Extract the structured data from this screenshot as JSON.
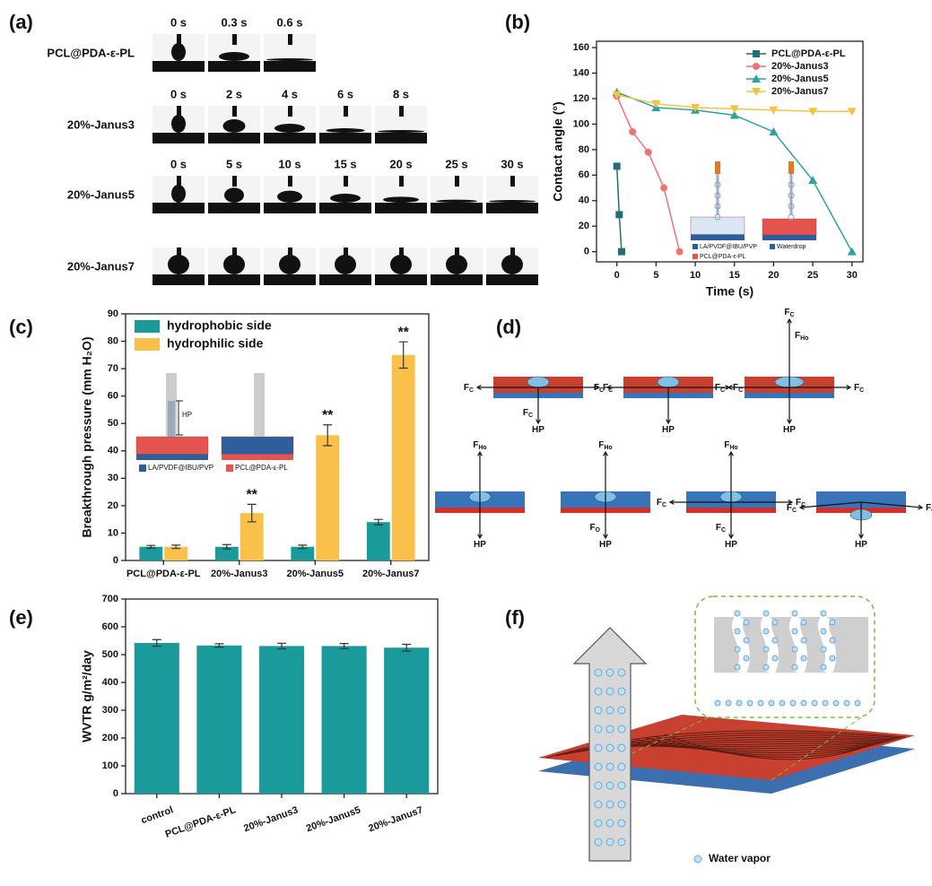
{
  "panel_labels": [
    "(a)",
    "(b)",
    "(c)",
    "(d)",
    "(e)",
    "(f)"
  ],
  "droplet_test": {
    "rows": [
      {
        "name": "PCL@PDA-ε-PL",
        "times": [
          "0 s",
          "0.3 s",
          "0.6 s"
        ]
      },
      {
        "name": "20%-Janus3",
        "times": [
          "0 s",
          "2 s",
          "4 s",
          "6 s",
          "8 s"
        ]
      },
      {
        "name": "20%-Janus5",
        "times": [
          "0 s",
          "5 s",
          "10 s",
          "15 s",
          "20 s",
          "25 s",
          "30 s"
        ]
      },
      {
        "name": "20%-Janus7",
        "times": []
      }
    ]
  },
  "inset_b": {
    "legend": [
      "LA/PVDF@IBU/PVP",
      "PCL@PDA-ε-PL",
      "Waterdrop"
    ]
  },
  "inset_c": {
    "label": "HP",
    "legend": [
      "LA/PVDF@IBU/PVP",
      "PCL@PDA-ε-PL"
    ]
  },
  "forces": {
    "diagrams": [
      [
        {
          "base": "F",
          "sub": "C"
        },
        {
          "base": "F",
          "sub": "C"
        },
        {
          "base": "F",
          "sub": "C"
        },
        {
          "base": "HP"
        }
      ],
      [
        {
          "base": "F",
          "sub": "C"
        },
        {
          "base": "F",
          "sub": "C"
        },
        {
          "base": "HP"
        }
      ],
      [
        {
          "base": "F",
          "sub": "C"
        },
        {
          "base": "F",
          "sub": "Ho"
        },
        {
          "base": "F",
          "sub": "C"
        },
        {
          "base": "F",
          "sub": "C"
        },
        {
          "base": "HP"
        }
      ],
      [
        {
          "base": "F",
          "sub": "Ho"
        },
        {
          "base": "HP"
        }
      ],
      [
        {
          "base": "F",
          "sub": "Ho"
        },
        {
          "base": "F",
          "sub": "O"
        },
        {
          "base": "HP"
        }
      ],
      [
        {
          "base": "F",
          "sub": "Ho"
        },
        {
          "base": "F",
          "sub": "C"
        },
        {
          "base": "F",
          "sub": "C"
        },
        {
          "base": "F",
          "sub": "C"
        },
        {
          "base": "HP"
        }
      ],
      [
        {
          "base": "F",
          "sub": "C"
        },
        {
          "base": "F",
          "sub": "C"
        },
        {
          "base": "HP"
        }
      ]
    ]
  },
  "vapor": {
    "legend": "Water vapor"
  },
  "chart_data": [
    {
      "type": "line",
      "xlabel": "Time (s)",
      "ylabel": "Contact angle (°)",
      "xlim": [
        -2.6,
        31.4
      ],
      "xticks": [
        0,
        5,
        10,
        15,
        20,
        25,
        30
      ],
      "ylim": [
        -8,
        165
      ],
      "yticks": [
        0,
        20,
        40,
        60,
        80,
        100,
        120,
        140,
        160
      ],
      "legend": "upper right",
      "series": [
        {
          "name": "PCL@PDA-ε-PL",
          "color": "#1f6f78",
          "marker": "square",
          "x": [
            0,
            0.3,
            0.6
          ],
          "values": [
            67,
            29,
            0
          ]
        },
        {
          "name": "20%-Janus3",
          "color": "#f07272",
          "marker": "circle",
          "x": [
            0,
            2,
            4,
            6,
            8
          ],
          "values": [
            122,
            94,
            78,
            50,
            0
          ]
        },
        {
          "name": "20%-Janus5",
          "color": "#2aa3a3",
          "marker": "triangle-up",
          "x": [
            0,
            5,
            10,
            15,
            20,
            25,
            30
          ],
          "values": [
            125,
            113,
            111,
            107,
            94,
            56,
            0
          ]
        },
        {
          "name": "20%-Janus7",
          "color": "#f5c242",
          "marker": "triangle-down",
          "x": [
            0,
            5,
            10,
            15,
            20,
            25,
            30
          ],
          "values": [
            123,
            116,
            113,
            112,
            111,
            110,
            110
          ]
        }
      ]
    },
    {
      "type": "bar",
      "ylabel": "Breakthrough pressure (mm H₂O)",
      "categories": [
        "PCL@PDA-ε-PL",
        "20%-Janus3",
        "20%-Janus5",
        "20%-Janus7"
      ],
      "ylim": [
        0,
        90
      ],
      "yticks": [
        0,
        10,
        20,
        30,
        40,
        50,
        60,
        70,
        80,
        90
      ],
      "legend": "upper left",
      "series": [
        {
          "name": "hydrophobic side",
          "color": "#1a9a9a",
          "values": [
            5,
            5,
            5,
            14
          ],
          "errors": [
            0.5,
            0.8,
            0.6,
            1
          ]
        },
        {
          "name": "hydrophilic side",
          "color": "#f9c04a",
          "values": [
            5,
            17.3,
            45.7,
            75
          ],
          "errors": [
            0.6,
            3.2,
            3.8,
            4.8
          ],
          "annotations": [
            null,
            "**",
            "**",
            "**"
          ]
        }
      ]
    },
    {
      "type": "bar",
      "ylabel": "WVTR g/m²/day",
      "categories": [
        "control",
        "PCL@PDA-ε-PL",
        "20%-Janus3",
        "20%-Janus5",
        "20%-Janus7"
      ],
      "ylim": [
        0,
        700
      ],
      "yticks": [
        0,
        100,
        200,
        300,
        400,
        500,
        600,
        700
      ],
      "color": "#1a9a9a",
      "values": [
        542,
        533,
        531,
        531,
        525
      ],
      "errors": [
        12,
        6,
        10,
        9,
        12
      ]
    }
  ]
}
